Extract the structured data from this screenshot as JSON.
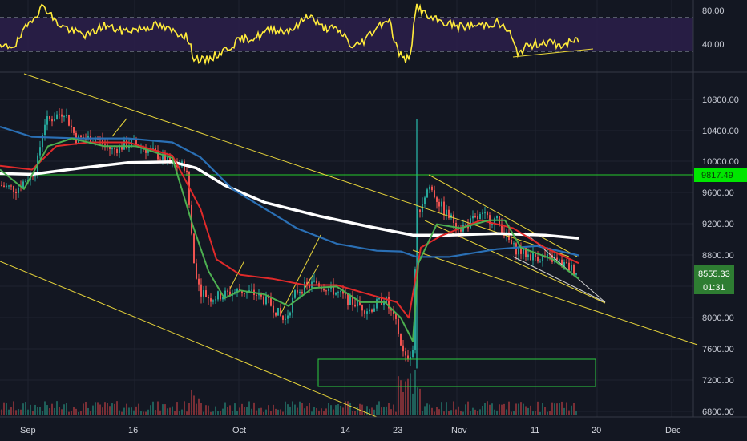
{
  "colors": {
    "background": "#131722",
    "grid": "#2a2e39",
    "rsi_line": "#ffeb3b",
    "rsi_band_fill": "#2b1f4a",
    "trendline": "#e6d33a",
    "hline": "#26c92a",
    "box": "#2ecc40",
    "ma_white": "#ffffff",
    "ma_blue": "#2a6fb4",
    "ma_red": "#e02a2a",
    "ma_green": "#4caf50",
    "candle_up": "#26a69a",
    "candle_down": "#ef5350",
    "price_tag": "#2e7d32",
    "level_tag": "#00e600"
  },
  "rsi": {
    "ticks": [
      "80.00",
      "40.00"
    ],
    "upper": 70,
    "lower": 30,
    "range": [
      5,
      95
    ]
  },
  "price_axis": {
    "ticks": [
      "10800.00",
      "10400.00",
      "10000.00",
      "9600.00",
      "9200.00",
      "8800.00",
      "8000.00",
      "7600.00",
      "7200.00",
      "6800.00"
    ],
    "range": [
      6700,
      11200
    ],
    "hidden_tick": "8"
  },
  "time_axis": {
    "labels": [
      "Sep",
      "16",
      "Oct",
      "14",
      "23",
      "Nov",
      "11",
      "20",
      "Dec"
    ]
  },
  "tags": {
    "level": "9817.49",
    "price": "8555.33",
    "countdown": "01:31"
  },
  "chart_data": {
    "type": "candlestick",
    "instrument_timeframe": "daily-intraday",
    "x_axis": [
      "Sep",
      "16",
      "Oct",
      "14",
      "23",
      "Nov",
      "11",
      "20",
      "Dec"
    ],
    "y_range": [
      6700,
      11200
    ],
    "last_price": 8555.33,
    "horizontal_level": 9817.49,
    "close_path": [
      [
        "Sep",
        9700
      ],
      [
        "Sep+5",
        10500
      ],
      [
        "Sep+9",
        10300
      ],
      [
        "16",
        10150
      ],
      [
        "16+6",
        9950
      ],
      [
        "Sep-24",
        8500
      ],
      [
        "Oct-1",
        8350
      ],
      [
        "Oct",
        8300
      ],
      [
        "Oct+6",
        8200
      ],
      [
        "Oct+10",
        8350
      ],
      [
        "14",
        8250
      ],
      [
        "14+6",
        8100
      ],
      [
        "23",
        7450
      ],
      [
        "25",
        9400
      ],
      [
        "Nov",
        9150
      ],
      [
        "Nov+6",
        9150
      ],
      [
        "11",
        8750
      ],
      [
        "11+5",
        8600
      ]
    ],
    "moving_averages": [
      {
        "color": "white",
        "values": [
          9900,
          9950,
          10000,
          9900,
          9500,
          9100,
          9050,
          9050,
          9050
        ]
      },
      {
        "color": "blue",
        "values": [
          10300,
          10250,
          9800,
          9300,
          8600,
          8900,
          8900,
          8820
        ]
      },
      {
        "color": "red",
        "values": [
          10100,
          10200,
          9900,
          8600,
          8150,
          9100,
          9200,
          8750
        ]
      },
      {
        "color": "green",
        "values": [
          10100,
          10300,
          9700,
          8200,
          7700,
          9100,
          9300,
          8700
        ]
      }
    ],
    "rsi_levels": [
      70,
      30
    ],
    "rsi_ticks": [
      "80.00",
      "40.00"
    ]
  }
}
